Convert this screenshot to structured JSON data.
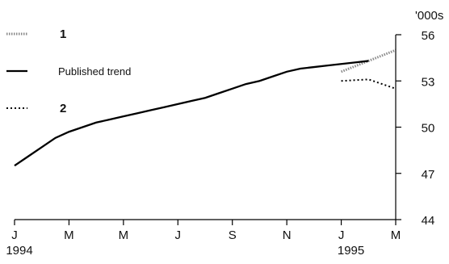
{
  "chart_data": {
    "type": "line",
    "x_ticks": [
      "J",
      "M",
      "M",
      "J",
      "S",
      "N",
      "J",
      "M"
    ],
    "year_labels": [
      "1994",
      "1995"
    ],
    "y_unit_label": "'000s",
    "y_ticks": [
      44,
      47,
      50,
      53,
      56
    ],
    "ylim": [
      44,
      56
    ],
    "grid": false,
    "legend_position": "top-left",
    "series": [
      {
        "name": "1",
        "style": "dotted-light",
        "color": "#8a8a8a",
        "x": [
          12.0,
          13.0,
          14.0
        ],
        "values": [
          53.6,
          54.3,
          55.0
        ]
      },
      {
        "name": "Published trend",
        "style": "solid",
        "color": "#000000",
        "x": [
          0,
          0.5,
          1,
          1.5,
          2,
          2.5,
          3,
          3.5,
          4,
          4.5,
          5,
          5.5,
          6,
          6.5,
          7,
          7.5,
          8,
          8.5,
          9,
          9.5,
          10,
          10.5,
          11,
          11.5,
          12,
          12.5,
          13.0
        ],
        "values": [
          47.5,
          48.1,
          48.7,
          49.3,
          49.7,
          50.0,
          50.3,
          50.5,
          50.7,
          50.9,
          51.1,
          51.3,
          51.5,
          51.7,
          51.9,
          52.2,
          52.5,
          52.8,
          53.0,
          53.3,
          53.6,
          53.8,
          53.9,
          54.0,
          54.1,
          54.2,
          54.3
        ]
      },
      {
        "name": "2",
        "style": "dotted",
        "color": "#000000",
        "x": [
          12.0,
          13.0,
          14.0
        ],
        "values": [
          53.0,
          53.1,
          52.5
        ]
      }
    ]
  }
}
